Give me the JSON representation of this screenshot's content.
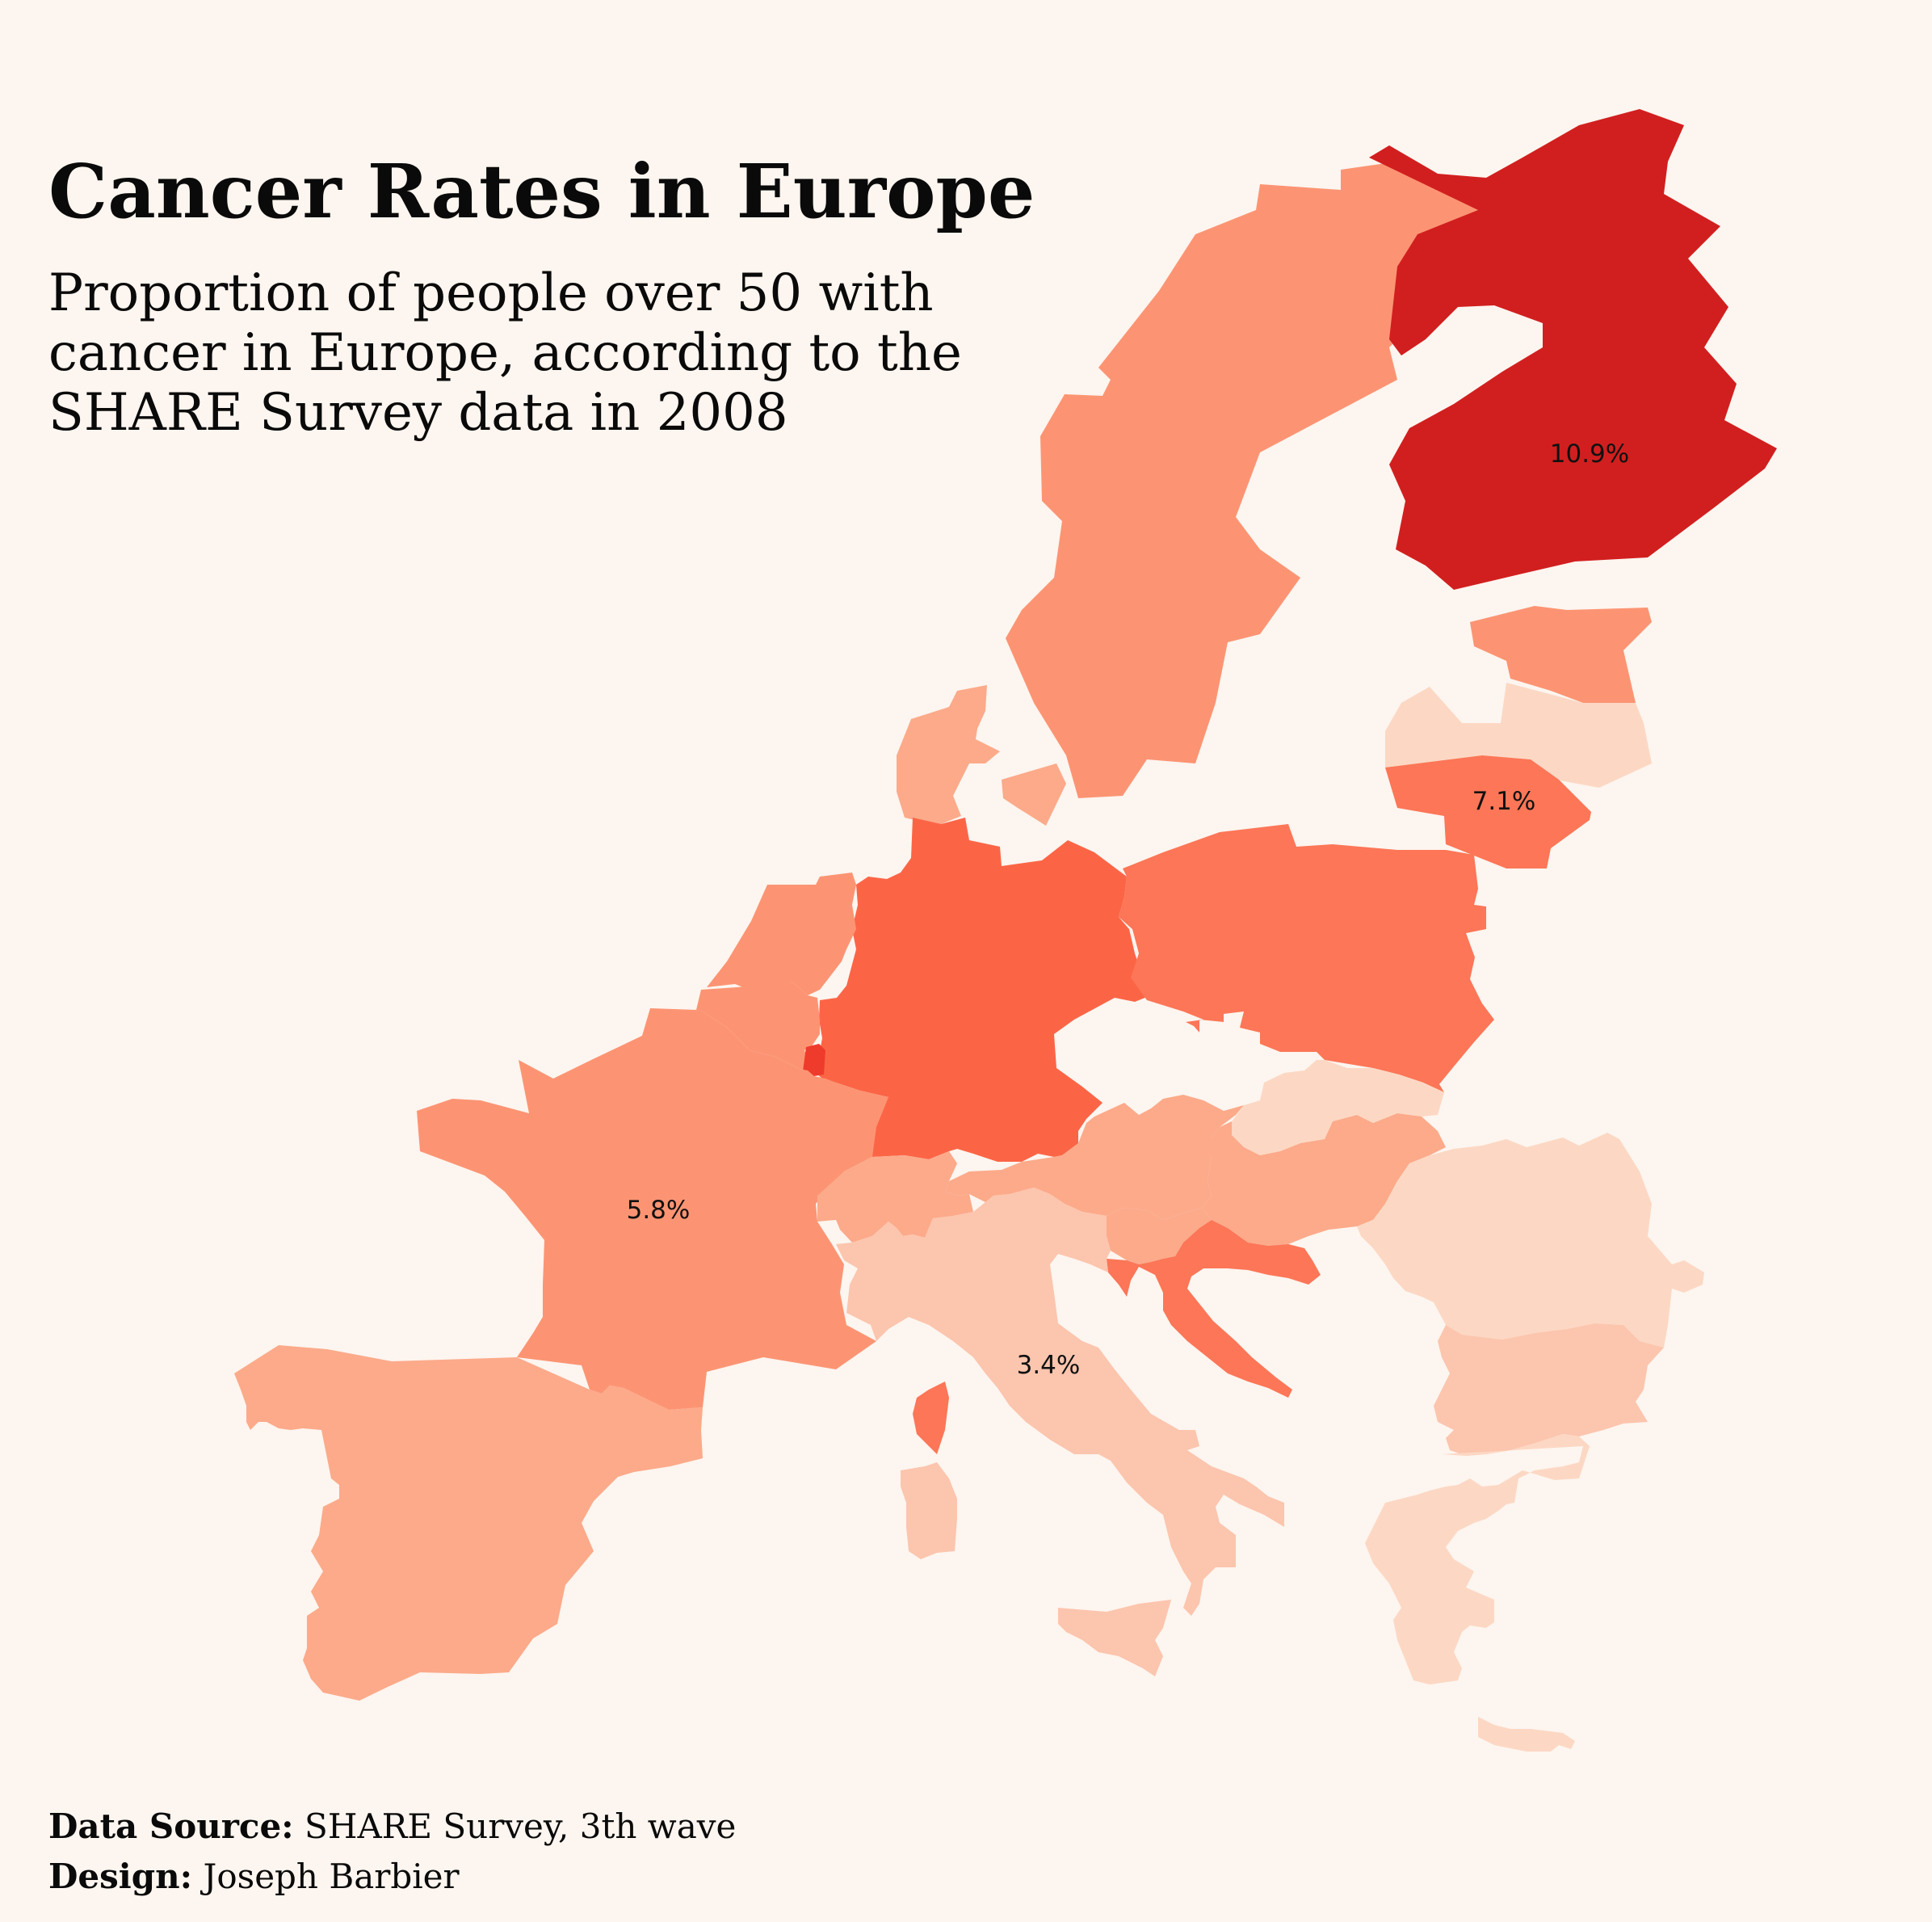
{
  "header": {
    "title": "Cancer Rates in Europe",
    "subtitle": "Proportion of people over 50 with cancer in Europe, according to the SHARE Survey data in 2008"
  },
  "footer": {
    "source_label": "Data Source:",
    "source_value": "SHARE Survey, 3th wave",
    "design_label": "Design:",
    "design_value": "Joseph Barbier"
  },
  "colors": {
    "background": "#fdf5ef",
    "scale": [
      "#fcd8c4",
      "#fcc5ae",
      "#fcaa8a",
      "#fc9473",
      "#fc7657",
      "#fb6546",
      "#ef3b2c",
      "#d11f1f"
    ]
  },
  "map_labels": [
    {
      "country": "finland",
      "text": "10.9%"
    },
    {
      "country": "lithuania",
      "text": "7.1%"
    },
    {
      "country": "france",
      "text": "5.8%"
    },
    {
      "country": "italy",
      "text": "3.4%"
    }
  ],
  "chart_data": {
    "type": "choropleth",
    "region": "Europe",
    "unit": "%",
    "countries": [
      {
        "name": "finland",
        "color": "#d11f1f",
        "value": 10.9
      },
      {
        "name": "lithuania",
        "color": "#fc7657",
        "value": 7.1
      },
      {
        "name": "france",
        "color": "#fc9473",
        "value": 5.8
      },
      {
        "name": "italy",
        "color": "#fcc5ae",
        "value": 3.4
      },
      {
        "name": "sweden",
        "color": "#fc9473"
      },
      {
        "name": "estonia",
        "color": "#fc9473"
      },
      {
        "name": "latvia",
        "color": "#fcd8c4"
      },
      {
        "name": "denmark",
        "color": "#fcaa8a"
      },
      {
        "name": "germany",
        "color": "#fb6546"
      },
      {
        "name": "poland",
        "color": "#fc7657"
      },
      {
        "name": "netherlands",
        "color": "#fc9473"
      },
      {
        "name": "belgium",
        "color": "#fc9473"
      },
      {
        "name": "luxembourg",
        "color": "#ef3b2c"
      },
      {
        "name": "czechia",
        "color": "#fdf5ef"
      },
      {
        "name": "slovakia",
        "color": "#fcd8c4"
      },
      {
        "name": "austria",
        "color": "#fcaa8a"
      },
      {
        "name": "switzerland",
        "color": "#fcaa8a"
      },
      {
        "name": "slovenia",
        "color": "#fcaa8a"
      },
      {
        "name": "croatia",
        "color": "#fc7657"
      },
      {
        "name": "hungary",
        "color": "#fcaa8a"
      },
      {
        "name": "romania",
        "color": "#fcd8c4"
      },
      {
        "name": "bulgaria",
        "color": "#fcc5ae"
      },
      {
        "name": "greece",
        "color": "#fcd8c4"
      },
      {
        "name": "spain",
        "color": "#fcaa8a"
      },
      {
        "name": "sardinia",
        "color": "#fcc5ae"
      },
      {
        "name": "corsica",
        "color": "#fc7657"
      }
    ]
  }
}
